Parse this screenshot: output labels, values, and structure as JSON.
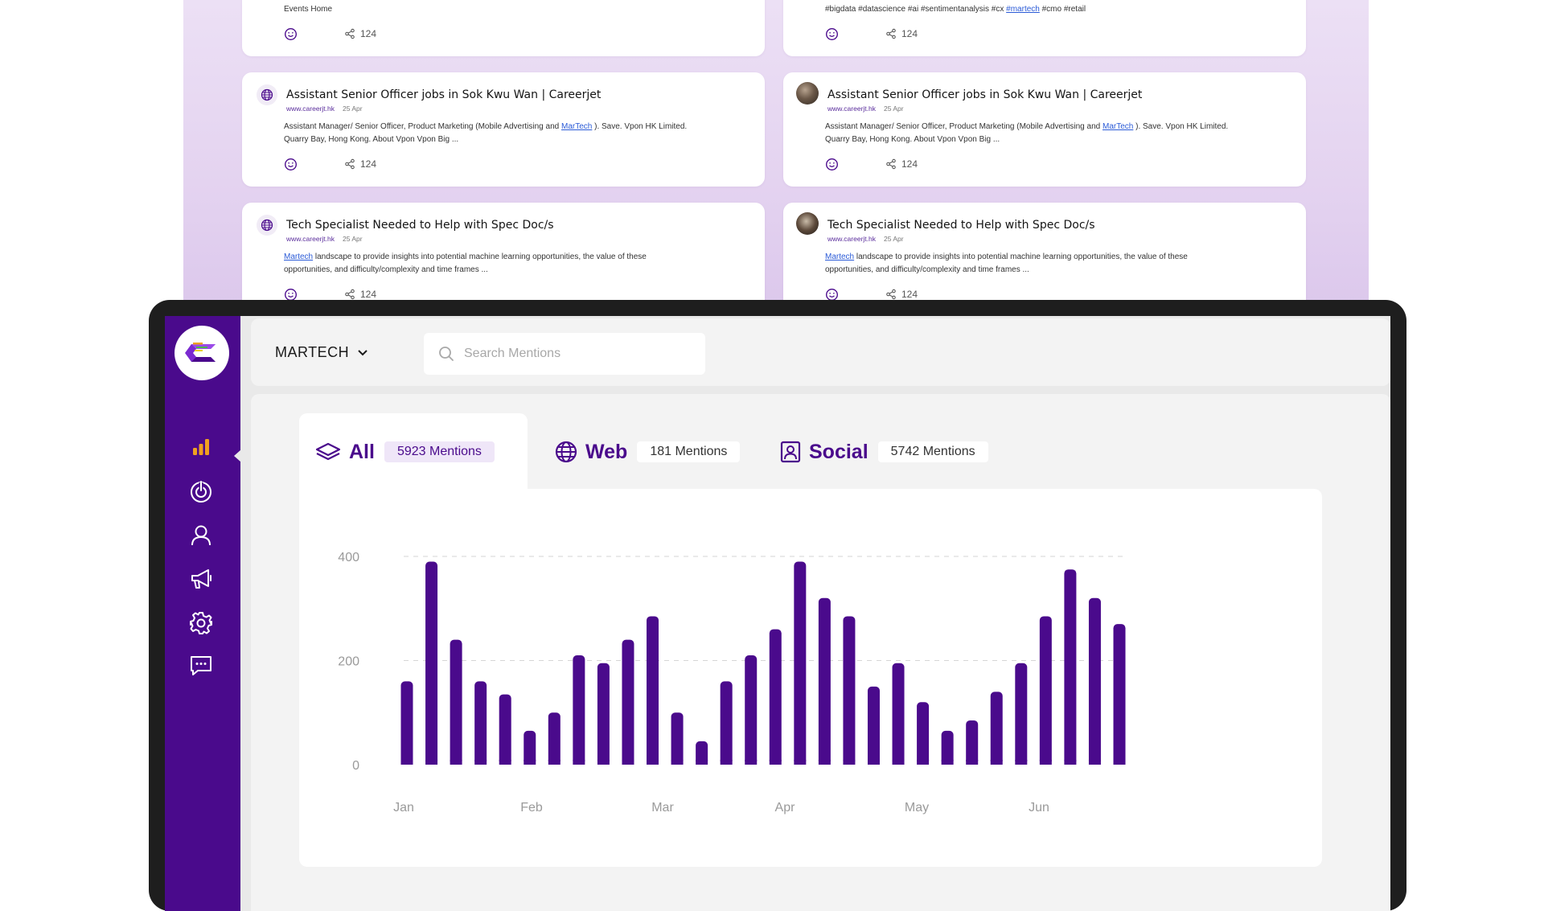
{
  "feed": {
    "top_left": {
      "text_partial": "Events Home",
      "share_count": "124"
    },
    "top_right": {
      "hashtags_before": "#bigdata #datascience #ai #sentimentanalysis #cx ",
      "hashtag_link": "#martech",
      "hashtags_after": " #cmo #retail",
      "share_count": "124"
    },
    "cards": [
      {
        "title": "Assistant Senior Officer jobs in Sok Kwu Wan | Careerjet",
        "source": "www.careerjt.hk",
        "date": "25 Apr",
        "body_before": "Assistant Manager/ Senior Officer, Product Marketing (Mobile Advertising and ",
        "body_link": "MarTech",
        "body_after": " ). Save. Vpon HK Limited.",
        "body_line2": "Quarry Bay, Hong Kong. About Vpon Vpon Big ...",
        "share_count": "124"
      },
      {
        "title": "Assistant Senior Officer jobs in Sok Kwu Wan | Careerjet",
        "source": "www.careerjt.hk",
        "date": "25 Apr",
        "body_before": "Assistant Manager/ Senior Officer, Product Marketing (Mobile Advertising and ",
        "body_link": "MarTech",
        "body_after": " ). Save. Vpon HK Limited.",
        "body_line2": "Quarry Bay, Hong Kong. About Vpon Vpon Big ...",
        "share_count": "124"
      },
      {
        "title": "Tech Specialist Needed to Help with Spec Doc/s",
        "source": "www.careerjt.hk",
        "date": "25 Apr",
        "body_link": "Martech",
        "body_after": " landscape to provide insights into potential machine learning opportunities, the value of these",
        "body_line2": "opportunities, and difficulty/complexity and time frames ...",
        "share_count": "124"
      },
      {
        "title": "Tech Specialist Needed to Help with Spec Doc/s",
        "source": "www.careerjt.hk",
        "date": "25 Apr",
        "body_link": "Martech",
        "body_after": " landscape to provide insights into potential machine learning opportunities, the value of these",
        "body_line2": "opportunities, and difficulty/complexity and time frames ...",
        "share_count": "124"
      }
    ]
  },
  "sidebar": {
    "logo": "app-logo",
    "items": [
      {
        "icon": "bar-chart-icon",
        "active": true
      },
      {
        "icon": "power-icon",
        "active": false
      },
      {
        "icon": "user-icon",
        "active": false
      },
      {
        "icon": "megaphone-icon",
        "active": false
      },
      {
        "icon": "gear-icon",
        "active": false
      },
      {
        "icon": "message-icon",
        "active": false
      }
    ]
  },
  "header": {
    "project": "MARTECH",
    "search_placeholder": "Search Mentions"
  },
  "tabs": [
    {
      "label": "All",
      "count": "5923 Mentions",
      "icon": "layers-icon",
      "active": true
    },
    {
      "label": "Web",
      "count": "181 Mentions",
      "icon": "globe-icon",
      "active": false
    },
    {
      "label": "Social",
      "count": "5742 Mentions",
      "icon": "profile-icon",
      "active": false
    }
  ],
  "colors": {
    "brand": "#4a0a8c",
    "bar": "#4a0a8c",
    "accent_orange": "#f0a020"
  },
  "chart_data": {
    "type": "bar",
    "y_ticks": [
      "400",
      "200",
      "0"
    ],
    "ylim": [
      0,
      400
    ],
    "x_ticks": [
      "Jan",
      "Feb",
      "Mar",
      "Apr",
      "May",
      "Jun"
    ],
    "values": [
      160,
      390,
      240,
      160,
      135,
      65,
      100,
      210,
      195,
      240,
      285,
      100,
      45,
      160,
      210,
      260,
      390,
      320,
      285,
      150,
      195,
      120,
      65,
      85,
      140,
      195,
      285,
      375,
      320,
      270
    ],
    "grid": "dashed horizontal",
    "legend": "none"
  }
}
